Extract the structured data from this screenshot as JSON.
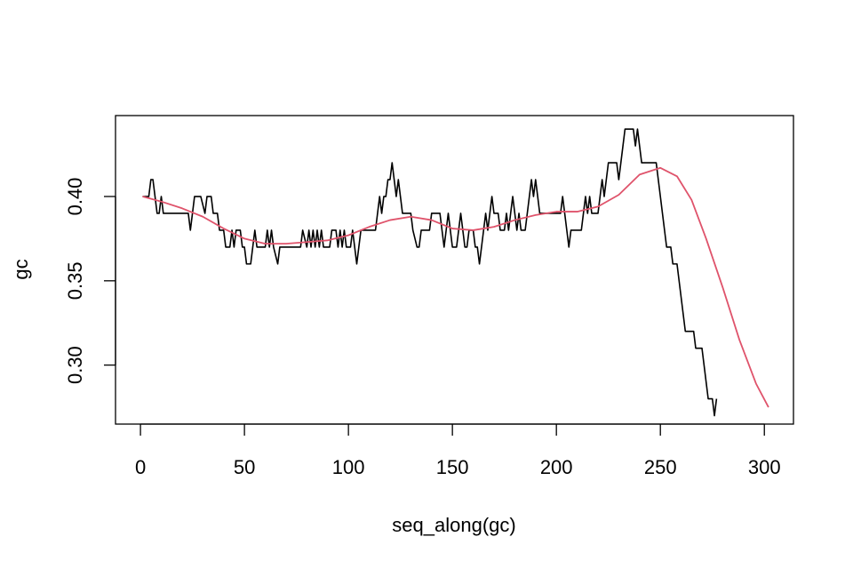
{
  "chart_data": {
    "type": "line",
    "title": "",
    "xlabel": "seq_along(gc)",
    "ylabel": "gc",
    "xlim": [
      -12,
      314
    ],
    "ylim": [
      0.265,
      0.448
    ],
    "x_ticks": [
      0,
      50,
      100,
      150,
      200,
      250,
      300
    ],
    "x_tick_labels": [
      "0",
      "50",
      "100",
      "150",
      "200",
      "250",
      "300"
    ],
    "y_ticks": [
      0.3,
      0.35,
      0.4
    ],
    "y_tick_labels": [
      "0.30",
      "0.35",
      "0.40"
    ],
    "grid": false,
    "legend": "none",
    "series": [
      {
        "style": "step",
        "color": "#000000",
        "points": [
          [
            1,
            0.4
          ],
          [
            4,
            0.4
          ],
          [
            5,
            0.41
          ],
          [
            6,
            0.41
          ],
          [
            7,
            0.4
          ],
          [
            8,
            0.39
          ],
          [
            9,
            0.39
          ],
          [
            10,
            0.4
          ],
          [
            11,
            0.39
          ],
          [
            23,
            0.39
          ],
          [
            24,
            0.38
          ],
          [
            25,
            0.39
          ],
          [
            26,
            0.4
          ],
          [
            29,
            0.4
          ],
          [
            31,
            0.39
          ],
          [
            32,
            0.4
          ],
          [
            34,
            0.4
          ],
          [
            35,
            0.39
          ],
          [
            37,
            0.39
          ],
          [
            38,
            0.38
          ],
          [
            40,
            0.38
          ],
          [
            41,
            0.37
          ],
          [
            43,
            0.37
          ],
          [
            44,
            0.38
          ],
          [
            45,
            0.37
          ],
          [
            46,
            0.38
          ],
          [
            48,
            0.38
          ],
          [
            49,
            0.37
          ],
          [
            50,
            0.37
          ],
          [
            51,
            0.36
          ],
          [
            53,
            0.36
          ],
          [
            54,
            0.37
          ],
          [
            55,
            0.38
          ],
          [
            56,
            0.37
          ],
          [
            60,
            0.37
          ],
          [
            61,
            0.38
          ],
          [
            62,
            0.37
          ],
          [
            63,
            0.38
          ],
          [
            64,
            0.37
          ],
          [
            66,
            0.36
          ],
          [
            67,
            0.37
          ],
          [
            77,
            0.37
          ],
          [
            78,
            0.38
          ],
          [
            80,
            0.37
          ],
          [
            81,
            0.38
          ],
          [
            82,
            0.37
          ],
          [
            83,
            0.38
          ],
          [
            84,
            0.37
          ],
          [
            85,
            0.38
          ],
          [
            86,
            0.37
          ],
          [
            87,
            0.38
          ],
          [
            88,
            0.37
          ],
          [
            91,
            0.37
          ],
          [
            92,
            0.38
          ],
          [
            94,
            0.38
          ],
          [
            95,
            0.37
          ],
          [
            96,
            0.38
          ],
          [
            97,
            0.37
          ],
          [
            98,
            0.38
          ],
          [
            99,
            0.37
          ],
          [
            101,
            0.37
          ],
          [
            102,
            0.38
          ],
          [
            103,
            0.37
          ],
          [
            104,
            0.36
          ],
          [
            105,
            0.37
          ],
          [
            106,
            0.38
          ],
          [
            113,
            0.38
          ],
          [
            114,
            0.39
          ],
          [
            115,
            0.4
          ],
          [
            116,
            0.39
          ],
          [
            117,
            0.4
          ],
          [
            118,
            0.4
          ],
          [
            119,
            0.41
          ],
          [
            120,
            0.41
          ],
          [
            121,
            0.42
          ],
          [
            122,
            0.41
          ],
          [
            123,
            0.4
          ],
          [
            124,
            0.41
          ],
          [
            125,
            0.4
          ],
          [
            126,
            0.39
          ],
          [
            130,
            0.39
          ],
          [
            131,
            0.38
          ],
          [
            133,
            0.37
          ],
          [
            134,
            0.37
          ],
          [
            135,
            0.38
          ],
          [
            139,
            0.38
          ],
          [
            140,
            0.39
          ],
          [
            144,
            0.39
          ],
          [
            145,
            0.38
          ],
          [
            146,
            0.37
          ],
          [
            147,
            0.38
          ],
          [
            148,
            0.39
          ],
          [
            149,
            0.38
          ],
          [
            150,
            0.37
          ],
          [
            152,
            0.37
          ],
          [
            153,
            0.38
          ],
          [
            154,
            0.39
          ],
          [
            155,
            0.38
          ],
          [
            156,
            0.37
          ],
          [
            157,
            0.37
          ],
          [
            158,
            0.38
          ],
          [
            160,
            0.38
          ],
          [
            161,
            0.37
          ],
          [
            162,
            0.37
          ],
          [
            163,
            0.36
          ],
          [
            164,
            0.37
          ],
          [
            165,
            0.38
          ],
          [
            166,
            0.39
          ],
          [
            167,
            0.38
          ],
          [
            168,
            0.39
          ],
          [
            169,
            0.4
          ],
          [
            170,
            0.39
          ],
          [
            172,
            0.39
          ],
          [
            173,
            0.38
          ],
          [
            175,
            0.38
          ],
          [
            176,
            0.39
          ],
          [
            177,
            0.38
          ],
          [
            178,
            0.39
          ],
          [
            179,
            0.4
          ],
          [
            180,
            0.39
          ],
          [
            181,
            0.38
          ],
          [
            182,
            0.39
          ],
          [
            183,
            0.38
          ],
          [
            185,
            0.38
          ],
          [
            186,
            0.39
          ],
          [
            187,
            0.4
          ],
          [
            188,
            0.41
          ],
          [
            189,
            0.4
          ],
          [
            190,
            0.41
          ],
          [
            191,
            0.4
          ],
          [
            192,
            0.39
          ],
          [
            202,
            0.39
          ],
          [
            203,
            0.4
          ],
          [
            204,
            0.39
          ],
          [
            205,
            0.38
          ],
          [
            206,
            0.37
          ],
          [
            207,
            0.38
          ],
          [
            212,
            0.38
          ],
          [
            213,
            0.39
          ],
          [
            214,
            0.4
          ],
          [
            215,
            0.39
          ],
          [
            216,
            0.4
          ],
          [
            217,
            0.39
          ],
          [
            220,
            0.39
          ],
          [
            221,
            0.4
          ],
          [
            222,
            0.41
          ],
          [
            223,
            0.4
          ],
          [
            224,
            0.41
          ],
          [
            225,
            0.42
          ],
          [
            229,
            0.42
          ],
          [
            230,
            0.41
          ],
          [
            231,
            0.42
          ],
          [
            232,
            0.43
          ],
          [
            233,
            0.44
          ],
          [
            237,
            0.44
          ],
          [
            238,
            0.43
          ],
          [
            239,
            0.44
          ],
          [
            240,
            0.43
          ],
          [
            241,
            0.42
          ],
          [
            248,
            0.42
          ],
          [
            249,
            0.41
          ],
          [
            250,
            0.4
          ],
          [
            251,
            0.39
          ],
          [
            252,
            0.38
          ],
          [
            253,
            0.37
          ],
          [
            255,
            0.37
          ],
          [
            256,
            0.36
          ],
          [
            258,
            0.36
          ],
          [
            259,
            0.35
          ],
          [
            260,
            0.34
          ],
          [
            261,
            0.33
          ],
          [
            262,
            0.32
          ],
          [
            266,
            0.32
          ],
          [
            267,
            0.31
          ],
          [
            270,
            0.31
          ],
          [
            271,
            0.3
          ],
          [
            272,
            0.29
          ],
          [
            273,
            0.28
          ],
          [
            275,
            0.28
          ],
          [
            276,
            0.27
          ],
          [
            277,
            0.28
          ]
        ]
      },
      {
        "style": "smooth",
        "color": "#DF536B",
        "points": [
          [
            1,
            0.4
          ],
          [
            10,
            0.397
          ],
          [
            20,
            0.393
          ],
          [
            30,
            0.388
          ],
          [
            40,
            0.381
          ],
          [
            50,
            0.375
          ],
          [
            60,
            0.372
          ],
          [
            70,
            0.372
          ],
          [
            80,
            0.373
          ],
          [
            90,
            0.374
          ],
          [
            100,
            0.377
          ],
          [
            110,
            0.382
          ],
          [
            120,
            0.386
          ],
          [
            130,
            0.388
          ],
          [
            140,
            0.386
          ],
          [
            150,
            0.381
          ],
          [
            160,
            0.38
          ],
          [
            170,
            0.382
          ],
          [
            180,
            0.386
          ],
          [
            190,
            0.389
          ],
          [
            200,
            0.391
          ],
          [
            210,
            0.391
          ],
          [
            220,
            0.394
          ],
          [
            230,
            0.401
          ],
          [
            240,
            0.413
          ],
          [
            250,
            0.417
          ],
          [
            258,
            0.412
          ],
          [
            265,
            0.398
          ],
          [
            272,
            0.375
          ],
          [
            280,
            0.346
          ],
          [
            288,
            0.315
          ],
          [
            296,
            0.289
          ],
          [
            302,
            0.275
          ]
        ]
      }
    ]
  }
}
